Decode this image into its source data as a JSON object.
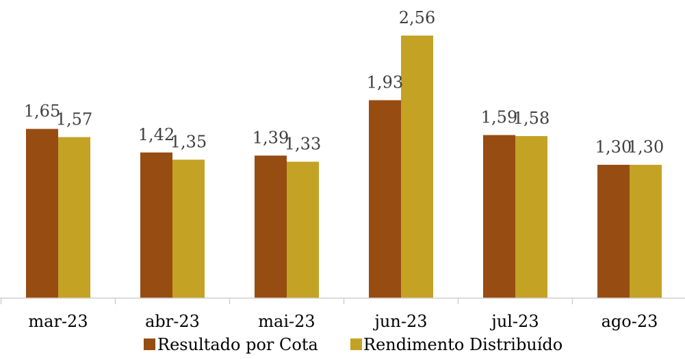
{
  "chart_data": {
    "type": "bar",
    "title": "",
    "xlabel": "",
    "ylabel": "",
    "ylim": [
      0,
      2.56
    ],
    "grid": false,
    "legend_position": "bottom",
    "categories": [
      "mar-23",
      "abr-23",
      "mai-23",
      "jun-23",
      "jul-23",
      "ago-23"
    ],
    "series": [
      {
        "name": "Resultado por Cota",
        "color": "#974c12",
        "values": [
          1.65,
          1.42,
          1.39,
          1.93,
          1.59,
          1.3
        ],
        "labels": [
          "1,65",
          "1,42",
          "1,39",
          "1,93",
          "1,59",
          "1,30"
        ]
      },
      {
        "name": "Rendimento Distribuído",
        "color": "#c4a224",
        "values": [
          1.57,
          1.35,
          1.33,
          2.56,
          1.58,
          1.3
        ],
        "labels": [
          "1,57",
          "1,35",
          "1,33",
          "2,56",
          "1,58",
          "1,30"
        ]
      }
    ]
  }
}
